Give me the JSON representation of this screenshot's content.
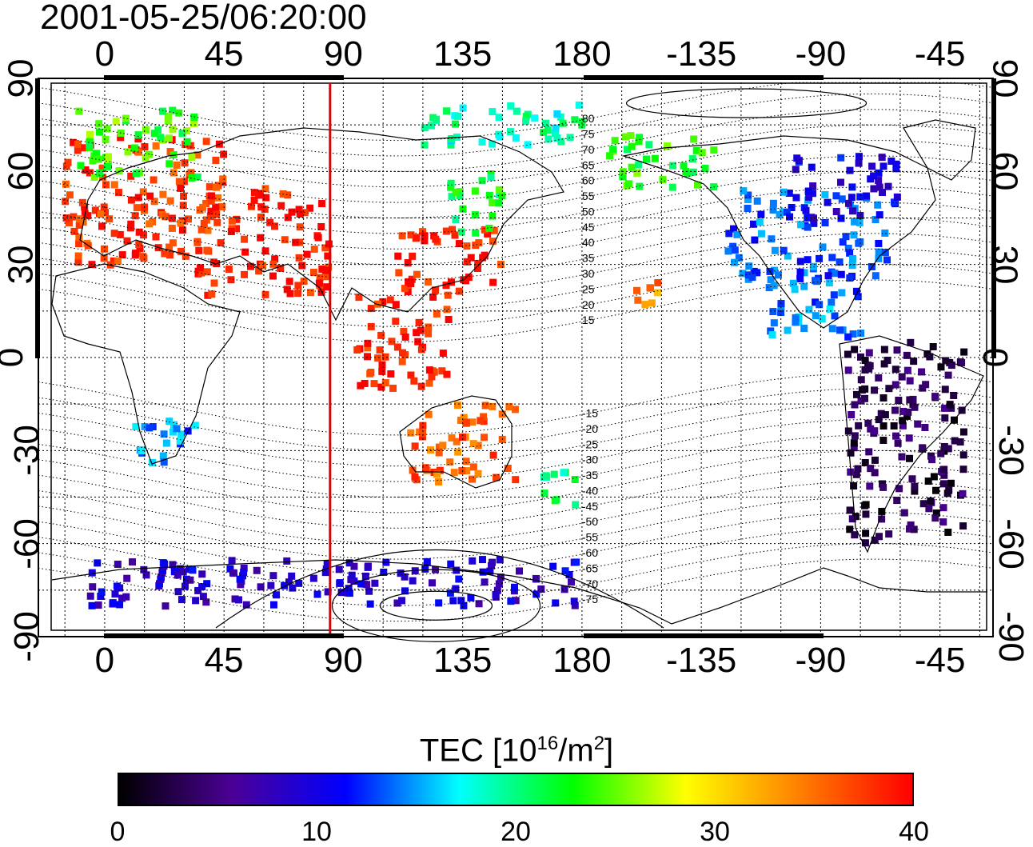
{
  "title": "2001-05-25/06:20:00",
  "axes": {
    "top_ticks": [
      "0",
      "45",
      "90",
      "135",
      "180",
      "-135",
      "-90",
      "-45"
    ],
    "bottom_ticks": [
      "0",
      "45",
      "90",
      "135",
      "180",
      "-135",
      "-90",
      "-45"
    ],
    "left_ticks": [
      "90",
      "60",
      "30",
      "0",
      "-30",
      "-60",
      "-90"
    ],
    "right_ticks": [
      "90",
      "60",
      "30",
      "0",
      "-30",
      "-60",
      "-90"
    ],
    "lon_range": [
      -25,
      335
    ],
    "lat_range": [
      -90,
      90
    ]
  },
  "magnetic_latitude_labels": [
    "80",
    "75",
    "70",
    "65",
    "60",
    "55",
    "50",
    "45",
    "40",
    "35",
    "30",
    "25",
    "20",
    "15",
    "-15",
    "-20",
    "-25",
    "-30",
    "-35",
    "-40",
    "-45",
    "-50",
    "-55",
    "-60",
    "-65",
    "-70",
    "-75"
  ],
  "colorbar": {
    "title_prefix": "TEC  [10",
    "title_sup1": "16",
    "title_mid": "/m",
    "title_sup2": "2",
    "title_suffix": "]",
    "ticks": [
      "0",
      "10",
      "20",
      "30",
      "40"
    ],
    "range": [
      0,
      40
    ],
    "colormap": [
      "#000000",
      "#4b0096",
      "#0000ff",
      "#00ffff",
      "#00ff00",
      "#ffff00",
      "#ff8000",
      "#ff0000"
    ]
  },
  "markers": {
    "sun_meridian_longitude": 85,
    "sun_meridian_color": "#dd0000"
  },
  "tec_regions": [
    {
      "name": "europe",
      "lon": [
        -15,
        45
      ],
      "lat": [
        30,
        72
      ],
      "tec": 38
    },
    {
      "name": "scandinavia",
      "lon": [
        -10,
        35
      ],
      "lat": [
        58,
        80
      ],
      "tec": 24
    },
    {
      "name": "middle-east",
      "lon": [
        35,
        85
      ],
      "lat": [
        20,
        55
      ],
      "tec": 39
    },
    {
      "name": "east-asia",
      "lon": [
        110,
        150
      ],
      "lat": [
        20,
        42
      ],
      "tec": 39
    },
    {
      "name": "japan-north",
      "lon": [
        130,
        150
      ],
      "lat": [
        38,
        60
      ],
      "tec": 22
    },
    {
      "name": "south-asia",
      "lon": [
        95,
        130
      ],
      "lat": [
        -10,
        20
      ],
      "tec": 39
    },
    {
      "name": "australia",
      "lon": [
        115,
        155
      ],
      "lat": [
        -40,
        -15
      ],
      "tec": 36
    },
    {
      "name": "north-america",
      "lon": [
        -125,
        -65
      ],
      "lat": [
        25,
        55
      ],
      "tec": 13
    },
    {
      "name": "alaska",
      "lon": [
        -170,
        -130
      ],
      "lat": [
        55,
        72
      ],
      "tec": 23
    },
    {
      "name": "canada",
      "lon": [
        -100,
        -60
      ],
      "lat": [
        45,
        65
      ],
      "tec": 10
    },
    {
      "name": "central-america",
      "lon": [
        -110,
        -75
      ],
      "lat": [
        5,
        25
      ],
      "tec": 14
    },
    {
      "name": "south-america",
      "lon": [
        -80,
        -35
      ],
      "lat": [
        -60,
        5
      ],
      "tec": 3
    },
    {
      "name": "southern-africa",
      "lon": [
        10,
        35
      ],
      "lat": [
        -35,
        -20
      ],
      "tec": 14
    },
    {
      "name": "new-zealand",
      "lon": [
        165,
        180
      ],
      "lat": [
        -48,
        -35
      ],
      "tec": 21
    },
    {
      "name": "antarctica",
      "lon": [
        -10,
        180
      ],
      "lat": [
        -80,
        -65
      ],
      "tec": 9
    },
    {
      "name": "pacific-north",
      "lon": [
        120,
        180
      ],
      "lat": [
        68,
        82
      ],
      "tec": 19
    },
    {
      "name": "hawaii",
      "lon": [
        -160,
        -150
      ],
      "lat": [
        17,
        25
      ],
      "tec": 34
    }
  ]
}
